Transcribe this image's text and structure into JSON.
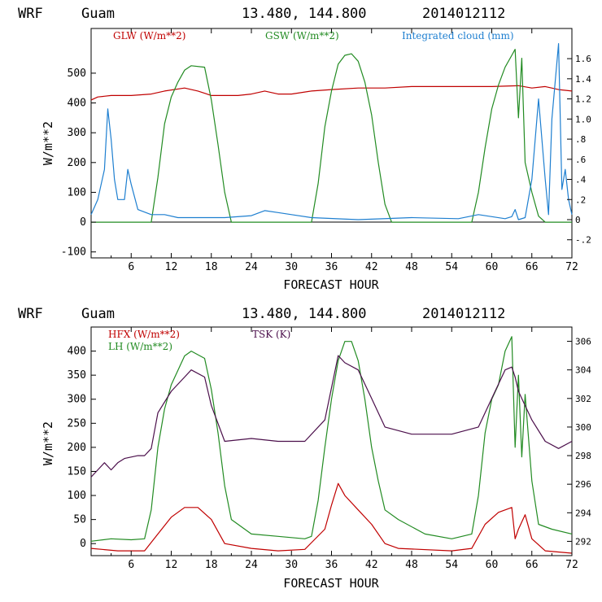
{
  "chart_data": [
    {
      "type": "line",
      "header": {
        "model": "WRF",
        "site": "Guam",
        "coords": "13.480, 144.800",
        "init": "2014012112"
      },
      "xlabel": "FORECAST HOUR",
      "ylabel": "W/m**2",
      "xlim": [
        0,
        72
      ],
      "ylim": [
        -120,
        650
      ],
      "y2lim": [
        -0.38,
        1.9
      ],
      "xticks": [
        "6",
        "12",
        "18",
        "24",
        "30",
        "36",
        "42",
        "48",
        "54",
        "60",
        "66",
        "72"
      ],
      "yticks": [
        "-100",
        "0",
        "100",
        "200",
        "300",
        "400",
        "500"
      ],
      "y2ticks": [
        "-.2",
        "0",
        ".2",
        ".4",
        ".6",
        ".8",
        "1.0",
        "1.2",
        "1.4",
        "1.6"
      ],
      "legend": [
        {
          "name": "GLW (W/m**2)",
          "color": "#c00000"
        },
        {
          "name": "GSW (W/m**2)",
          "color": "#228b22"
        },
        {
          "name": "Integrated cloud (mm)",
          "color": "#1e7fd0"
        }
      ],
      "series": [
        {
          "name": "GLW (W/m**2)",
          "axis": "left",
          "color": "#c00000",
          "points": [
            [
              0,
              410
            ],
            [
              1,
              420
            ],
            [
              3,
              425
            ],
            [
              6,
              425
            ],
            [
              9,
              430
            ],
            [
              11,
              440
            ],
            [
              14,
              450
            ],
            [
              16,
              440
            ],
            [
              18,
              425
            ],
            [
              22,
              425
            ],
            [
              24,
              430
            ],
            [
              26,
              440
            ],
            [
              28,
              430
            ],
            [
              30,
              430
            ],
            [
              33,
              440
            ],
            [
              36,
              445
            ],
            [
              40,
              450
            ],
            [
              44,
              450
            ],
            [
              48,
              455
            ],
            [
              54,
              455
            ],
            [
              60,
              455
            ],
            [
              64,
              458
            ],
            [
              66,
              450
            ],
            [
              68,
              455
            ],
            [
              70,
              445
            ],
            [
              72,
              440
            ]
          ]
        },
        {
          "name": "GSW (W/m**2)",
          "axis": "left",
          "color": "#228b22",
          "points": [
            [
              0,
              0
            ],
            [
              9,
              0
            ],
            [
              10,
              150
            ],
            [
              11,
              330
            ],
            [
              12,
              420
            ],
            [
              13,
              470
            ],
            [
              14,
              510
            ],
            [
              15,
              525
            ],
            [
              17,
              520
            ],
            [
              18,
              410
            ],
            [
              19,
              260
            ],
            [
              20,
              100
            ],
            [
              21,
              0
            ],
            [
              33,
              0
            ],
            [
              34,
              130
            ],
            [
              35,
              320
            ],
            [
              36,
              440
            ],
            [
              37,
              530
            ],
            [
              38,
              560
            ],
            [
              39,
              565
            ],
            [
              40,
              540
            ],
            [
              41,
              470
            ],
            [
              42,
              360
            ],
            [
              43,
              200
            ],
            [
              44,
              60
            ],
            [
              45,
              0
            ],
            [
              57,
              0
            ],
            [
              58,
              100
            ],
            [
              59,
              250
            ],
            [
              60,
              380
            ],
            [
              61,
              460
            ],
            [
              62,
              520
            ],
            [
              63,
              560
            ],
            [
              63.5,
              580
            ],
            [
              64,
              350
            ],
            [
              64.5,
              550
            ],
            [
              65,
              200
            ],
            [
              66,
              100
            ],
            [
              67,
              20
            ],
            [
              68,
              0
            ],
            [
              72,
              0
            ]
          ]
        },
        {
          "name": "Integrated cloud (mm)",
          "axis": "right",
          "color": "#1e7fd0",
          "points": [
            [
              0,
              0.05
            ],
            [
              1,
              0.2
            ],
            [
              2,
              0.5
            ],
            [
              2.5,
              1.1
            ],
            [
              3,
              0.8
            ],
            [
              3.5,
              0.4
            ],
            [
              4,
              0.2
            ],
            [
              5,
              0.2
            ],
            [
              5.5,
              0.5
            ],
            [
              6,
              0.35
            ],
            [
              7,
              0.1
            ],
            [
              9,
              0.05
            ],
            [
              11,
              0.05
            ],
            [
              13,
              0.02
            ],
            [
              20,
              0.02
            ],
            [
              24,
              0.04
            ],
            [
              26,
              0.09
            ],
            [
              28,
              0.07
            ],
            [
              30,
              0.05
            ],
            [
              33,
              0.02
            ],
            [
              40,
              0.0
            ],
            [
              48,
              0.02
            ],
            [
              55,
              0.01
            ],
            [
              58,
              0.05
            ],
            [
              62,
              0.01
            ],
            [
              63,
              0.03
            ],
            [
              63.5,
              0.1
            ],
            [
              64,
              0.0
            ],
            [
              65,
              0.02
            ],
            [
              66,
              0.4
            ],
            [
              67,
              1.2
            ],
            [
              68,
              0.4
            ],
            [
              68.5,
              0.05
            ],
            [
              69,
              1.0
            ],
            [
              70,
              1.75
            ],
            [
              70.5,
              0.3
            ],
            [
              71,
              0.5
            ],
            [
              71.5,
              0.2
            ],
            [
              72,
              0.05
            ]
          ]
        }
      ]
    },
    {
      "type": "line",
      "header": {
        "model": "WRF",
        "site": "Guam",
        "coords": "13.480, 144.800",
        "init": "2014012112"
      },
      "xlabel": "FORECAST HOUR",
      "ylabel": "W/m**2",
      "xlim": [
        0,
        72
      ],
      "ylim": [
        -25,
        450
      ],
      "y2lim": [
        291,
        307
      ],
      "xticks": [
        "6",
        "12",
        "18",
        "24",
        "30",
        "36",
        "42",
        "48",
        "54",
        "60",
        "66",
        "72"
      ],
      "yticks": [
        "0",
        "50",
        "100",
        "150",
        "200",
        "250",
        "300",
        "350",
        "400"
      ],
      "y2ticks": [
        "292",
        "294",
        "296",
        "298",
        "300",
        "302",
        "304",
        "306"
      ],
      "legend": [
        {
          "name": "HFX (W/m**2)",
          "color": "#c00000"
        },
        {
          "name": "LH  (W/m**2)",
          "color": "#228b22"
        },
        {
          "name": "TSK (K)",
          "color": "#4b0f4b"
        }
      ],
      "series": [
        {
          "name": "HFX (W/m**2)",
          "axis": "left",
          "color": "#c00000",
          "points": [
            [
              0,
              -10
            ],
            [
              4,
              -15
            ],
            [
              8,
              -15
            ],
            [
              10,
              20
            ],
            [
              12,
              55
            ],
            [
              14,
              75
            ],
            [
              16,
              75
            ],
            [
              18,
              50
            ],
            [
              20,
              0
            ],
            [
              24,
              -10
            ],
            [
              28,
              -15
            ],
            [
              32,
              -12
            ],
            [
              35,
              30
            ],
            [
              36,
              80
            ],
            [
              37,
              125
            ],
            [
              38,
              100
            ],
            [
              40,
              70
            ],
            [
              42,
              40
            ],
            [
              44,
              0
            ],
            [
              46,
              -10
            ],
            [
              54,
              -15
            ],
            [
              57,
              -10
            ],
            [
              59,
              40
            ],
            [
              61,
              65
            ],
            [
              63,
              75
            ],
            [
              63.5,
              10
            ],
            [
              64,
              30
            ],
            [
              65,
              60
            ],
            [
              66,
              10
            ],
            [
              68,
              -15
            ],
            [
              72,
              -20
            ]
          ]
        },
        {
          "name": "LH  (W/m**2)",
          "axis": "left",
          "color": "#228b22",
          "points": [
            [
              0,
              5
            ],
            [
              3,
              10
            ],
            [
              6,
              8
            ],
            [
              8,
              10
            ],
            [
              9,
              70
            ],
            [
              10,
              200
            ],
            [
              11,
              280
            ],
            [
              12,
              330
            ],
            [
              14,
              390
            ],
            [
              15,
              400
            ],
            [
              17,
              385
            ],
            [
              18,
              320
            ],
            [
              19,
              230
            ],
            [
              20,
              120
            ],
            [
              21,
              50
            ],
            [
              24,
              20
            ],
            [
              28,
              15
            ],
            [
              32,
              10
            ],
            [
              33,
              15
            ],
            [
              34,
              90
            ],
            [
              35,
              200
            ],
            [
              36,
              300
            ],
            [
              37,
              380
            ],
            [
              38,
              420
            ],
            [
              39,
              420
            ],
            [
              40,
              380
            ],
            [
              41,
              300
            ],
            [
              42,
              200
            ],
            [
              43,
              130
            ],
            [
              44,
              70
            ],
            [
              46,
              50
            ],
            [
              50,
              20
            ],
            [
              54,
              10
            ],
            [
              57,
              20
            ],
            [
              58,
              100
            ],
            [
              59,
              230
            ],
            [
              60,
              300
            ],
            [
              61,
              330
            ],
            [
              62,
              400
            ],
            [
              63,
              430
            ],
            [
              63.5,
              200
            ],
            [
              64,
              350
            ],
            [
              64.5,
              180
            ],
            [
              65,
              310
            ],
            [
              66,
              130
            ],
            [
              67,
              40
            ],
            [
              69,
              30
            ],
            [
              72,
              20
            ]
          ]
        },
        {
          "name": "TSK (K)",
          "axis": "right",
          "color": "#4b0f4b",
          "points": [
            [
              0,
              296.5
            ],
            [
              1,
              297
            ],
            [
              2,
              297.5
            ],
            [
              3,
              297
            ],
            [
              4,
              297.5
            ],
            [
              5,
              297.8
            ],
            [
              7,
              298
            ],
            [
              8,
              298
            ],
            [
              9,
              298.5
            ],
            [
              10,
              301
            ],
            [
              12,
              302.5
            ],
            [
              14,
              303.5
            ],
            [
              15,
              304
            ],
            [
              17,
              303.5
            ],
            [
              18,
              301.5
            ],
            [
              20,
              299
            ],
            [
              24,
              299.2
            ],
            [
              28,
              299
            ],
            [
              32,
              299
            ],
            [
              35,
              300.5
            ],
            [
              37,
              305
            ],
            [
              38,
              304.5
            ],
            [
              40,
              304
            ],
            [
              42,
              302
            ],
            [
              44,
              300
            ],
            [
              48,
              299.5
            ],
            [
              54,
              299.5
            ],
            [
              58,
              300
            ],
            [
              60,
              302
            ],
            [
              62,
              304
            ],
            [
              63,
              304.2
            ],
            [
              63.5,
              303.5
            ],
            [
              64,
              302.5
            ],
            [
              65,
              301.5
            ],
            [
              66,
              300.5
            ],
            [
              68,
              299
            ],
            [
              70,
              298.5
            ],
            [
              72,
              299
            ]
          ]
        }
      ]
    }
  ]
}
